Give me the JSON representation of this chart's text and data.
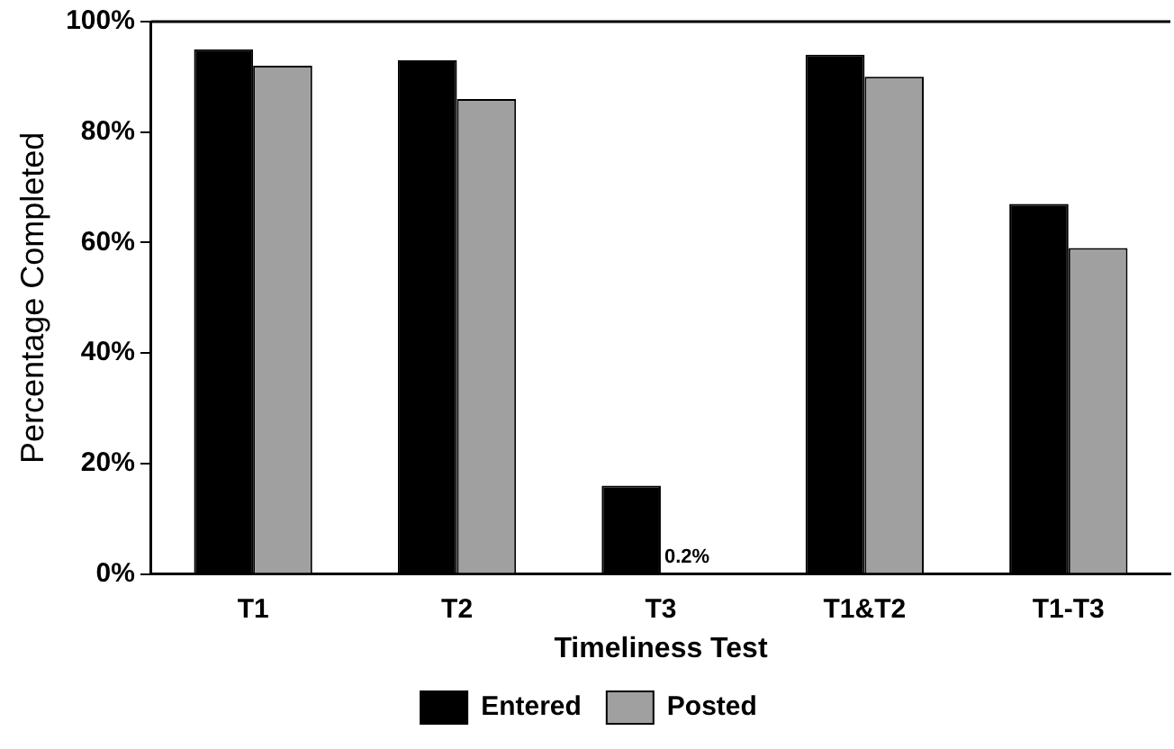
{
  "chart_data": {
    "type": "bar",
    "xlabel": "Timeliness Test",
    "ylabel": "Percentage Completed",
    "categories": [
      "T1",
      "T2",
      "T3",
      "T1&T2",
      "T1-T3"
    ],
    "series": [
      {
        "name": "Entered",
        "color": "#000000",
        "values": [
          95,
          93,
          16,
          94,
          67
        ]
      },
      {
        "name": "Posted",
        "color": "#a0a0a0",
        "values": [
          92,
          86,
          0.2,
          90,
          59
        ],
        "value_labels": [
          null,
          null,
          "0.2%",
          null,
          null
        ]
      }
    ],
    "ylim": [
      0,
      100
    ],
    "yticks": [
      {
        "value": 0,
        "label": "0%"
      },
      {
        "value": 20,
        "label": "20%"
      },
      {
        "value": 40,
        "label": "40%"
      },
      {
        "value": 60,
        "label": "60%"
      },
      {
        "value": 80,
        "label": "80%"
      },
      {
        "value": 100,
        "label": "100%"
      }
    ],
    "grid": false,
    "legend": "bottom"
  }
}
